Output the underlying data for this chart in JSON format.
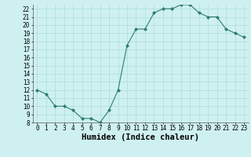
{
  "x": [
    0,
    1,
    2,
    3,
    4,
    5,
    6,
    7,
    8,
    9,
    10,
    11,
    12,
    13,
    14,
    15,
    16,
    17,
    18,
    19,
    20,
    21,
    22,
    23
  ],
  "y": [
    12,
    11.5,
    10,
    10,
    9.5,
    8.5,
    8.5,
    8,
    9.5,
    12,
    17.5,
    19.5,
    19.5,
    21.5,
    22,
    22,
    22.5,
    22.5,
    21.5,
    21,
    21,
    19.5,
    19,
    18.5
  ],
  "line_color": "#2e7d6e",
  "marker": "D",
  "marker_size": 2.0,
  "bg_color": "#cff0f0",
  "grid_color": "#aadddd",
  "xlabel": "Humidex (Indice chaleur)",
  "xlim": [
    -0.5,
    23.5
  ],
  "ylim": [
    8,
    22.5
  ],
  "yticks": [
    8,
    9,
    10,
    11,
    12,
    13,
    14,
    15,
    16,
    17,
    18,
    19,
    20,
    21,
    22
  ],
  "xticks": [
    0,
    1,
    2,
    3,
    4,
    5,
    6,
    7,
    8,
    9,
    10,
    11,
    12,
    13,
    14,
    15,
    16,
    17,
    18,
    19,
    20,
    21,
    22,
    23
  ],
  "tick_fontsize": 5.5,
  "xlabel_fontsize": 7.5
}
